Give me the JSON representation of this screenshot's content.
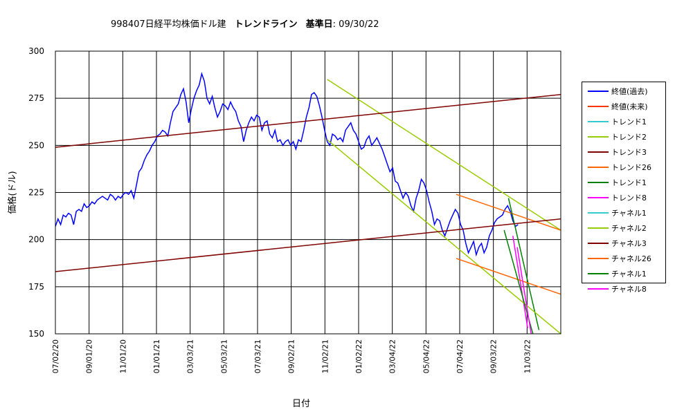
{
  "title": {
    "name": "998407日経平均株価ドル建",
    "sub": "トレンドライン",
    "base_label": "基準日",
    "date": ": 09/30/22"
  },
  "chart_data": {
    "type": "line",
    "title": "998407日経平均株価ドル建　トレンドライン　基準日: 09/30/22",
    "xlabel": "日付",
    "ylabel": "価格(ドル)",
    "ylim": [
      150,
      300
    ],
    "yticks": [
      150,
      175,
      200,
      225,
      250,
      275,
      300
    ],
    "xticks": [
      "07/02/20",
      "09/01/20",
      "11/01/20",
      "01/01/21",
      "03/03/21",
      "05/03/21",
      "07/03/21",
      "09/02/21",
      "11/02/21",
      "01/02/22",
      "03/04/22",
      "05/04/22",
      "07/04/22",
      "09/03/22",
      "11/03/22"
    ],
    "grid": true,
    "legend_position": "right",
    "series": [
      {
        "name": "終値(過去)",
        "color": "#0000ff",
        "width": 1.5,
        "points": [
          [
            0,
            207
          ],
          [
            3,
            211
          ],
          [
            6,
            208
          ],
          [
            9,
            213
          ],
          [
            12,
            212
          ],
          [
            15,
            214
          ],
          [
            18,
            213
          ],
          [
            21,
            208
          ],
          [
            24,
            215
          ],
          [
            27,
            216
          ],
          [
            30,
            215
          ],
          [
            33,
            219
          ],
          [
            36,
            217
          ],
          [
            39,
            218
          ],
          [
            42,
            220
          ],
          [
            45,
            219
          ],
          [
            48,
            221
          ],
          [
            51,
            222
          ],
          [
            54,
            223
          ],
          [
            57,
            222
          ],
          [
            60,
            221
          ],
          [
            63,
            224
          ],
          [
            66,
            223
          ],
          [
            69,
            221
          ],
          [
            72,
            223
          ],
          [
            75,
            222
          ],
          [
            78,
            224
          ],
          [
            81,
            225
          ],
          [
            84,
            224
          ],
          [
            87,
            226
          ],
          [
            90,
            222
          ],
          [
            93,
            229
          ],
          [
            96,
            236
          ],
          [
            99,
            238
          ],
          [
            102,
            242
          ],
          [
            105,
            245
          ],
          [
            108,
            247
          ],
          [
            111,
            250
          ],
          [
            114,
            252
          ],
          [
            117,
            255
          ],
          [
            120,
            256
          ],
          [
            123,
            258
          ],
          [
            126,
            257
          ],
          [
            129,
            255
          ],
          [
            132,
            262
          ],
          [
            135,
            268
          ],
          [
            138,
            270
          ],
          [
            141,
            272
          ],
          [
            144,
            277
          ],
          [
            147,
            280
          ],
          [
            150,
            273
          ],
          [
            153,
            262
          ],
          [
            156,
            269
          ],
          [
            159,
            275
          ],
          [
            162,
            279
          ],
          [
            165,
            282
          ],
          [
            168,
            288
          ],
          [
            171,
            284
          ],
          [
            174,
            275
          ],
          [
            177,
            272
          ],
          [
            180,
            276
          ],
          [
            183,
            270
          ],
          [
            186,
            265
          ],
          [
            189,
            268
          ],
          [
            192,
            272
          ],
          [
            195,
            271
          ],
          [
            198,
            269
          ],
          [
            201,
            273
          ],
          [
            204,
            270
          ],
          [
            207,
            268
          ],
          [
            210,
            263
          ],
          [
            213,
            260
          ],
          [
            216,
            252
          ],
          [
            219,
            258
          ],
          [
            222,
            262
          ],
          [
            225,
            265
          ],
          [
            228,
            263
          ],
          [
            231,
            266
          ],
          [
            234,
            265
          ],
          [
            237,
            258
          ],
          [
            240,
            262
          ],
          [
            243,
            263
          ],
          [
            246,
            256
          ],
          [
            249,
            254
          ],
          [
            252,
            258
          ],
          [
            255,
            252
          ],
          [
            258,
            253
          ],
          [
            261,
            250
          ],
          [
            264,
            252
          ],
          [
            267,
            253
          ],
          [
            270,
            250
          ],
          [
            273,
            252
          ],
          [
            276,
            248
          ],
          [
            279,
            253
          ],
          [
            282,
            252
          ],
          [
            285,
            258
          ],
          [
            288,
            265
          ],
          [
            291,
            270
          ],
          [
            294,
            277
          ],
          [
            297,
            278
          ],
          [
            300,
            276
          ],
          [
            303,
            271
          ],
          [
            306,
            265
          ],
          [
            309,
            258
          ],
          [
            312,
            252
          ],
          [
            315,
            250
          ],
          [
            318,
            256
          ],
          [
            321,
            255
          ],
          [
            324,
            253
          ],
          [
            327,
            254
          ],
          [
            330,
            252
          ],
          [
            333,
            258
          ],
          [
            336,
            260
          ],
          [
            339,
            262
          ],
          [
            342,
            258
          ],
          [
            345,
            256
          ],
          [
            348,
            252
          ],
          [
            351,
            248
          ],
          [
            354,
            249
          ],
          [
            357,
            253
          ],
          [
            360,
            255
          ],
          [
            363,
            250
          ],
          [
            366,
            252
          ],
          [
            369,
            254
          ],
          [
            372,
            251
          ],
          [
            375,
            248
          ],
          [
            378,
            244
          ],
          [
            381,
            240
          ],
          [
            384,
            236
          ],
          [
            387,
            238
          ],
          [
            390,
            231
          ],
          [
            393,
            230
          ],
          [
            396,
            226
          ],
          [
            399,
            222
          ],
          [
            402,
            225
          ],
          [
            405,
            223
          ],
          [
            408,
            218
          ],
          [
            411,
            215
          ],
          [
            414,
            222
          ],
          [
            417,
            226
          ],
          [
            420,
            232
          ],
          [
            423,
            230
          ],
          [
            426,
            226
          ],
          [
            429,
            220
          ],
          [
            432,
            215
          ],
          [
            435,
            208
          ],
          [
            438,
            211
          ],
          [
            441,
            210
          ],
          [
            444,
            205
          ],
          [
            447,
            202
          ],
          [
            450,
            206
          ],
          [
            453,
            210
          ],
          [
            456,
            213
          ],
          [
            459,
            216
          ],
          [
            462,
            214
          ],
          [
            465,
            208
          ],
          [
            468,
            205
          ],
          [
            471,
            198
          ],
          [
            474,
            193
          ],
          [
            477,
            196
          ],
          [
            480,
            199
          ],
          [
            483,
            192
          ],
          [
            486,
            196
          ],
          [
            489,
            198
          ],
          [
            492,
            193
          ],
          [
            495,
            196
          ],
          [
            498,
            202
          ],
          [
            501,
            205
          ],
          [
            504,
            209
          ],
          [
            507,
            211
          ],
          [
            510,
            212
          ],
          [
            513,
            213
          ],
          [
            516,
            216
          ],
          [
            519,
            218
          ],
          [
            522,
            215
          ],
          [
            525,
            210
          ],
          [
            528,
            207
          ],
          [
            531,
            208
          ]
        ]
      },
      {
        "name": "終値(未来)",
        "color": "#ff3300",
        "width": 1.5,
        "points": []
      },
      {
        "name": "トレンド1",
        "color": "#33cccc",
        "width": 1.5,
        "points": []
      },
      {
        "name": "トレンド2",
        "color": "#99cc00",
        "width": 1.5,
        "points": [
          [
            312,
            285
          ],
          [
            580,
            205
          ]
        ]
      },
      {
        "name": "トレンド3",
        "color": "#800000",
        "width": 1.5,
        "points": [
          [
            0,
            249
          ],
          [
            580,
            277
          ]
        ]
      },
      {
        "name": "トレンド26",
        "color": "#ff6600",
        "width": 1.5,
        "points": [
          [
            460,
            224
          ],
          [
            580,
            205
          ]
        ]
      },
      {
        "name": "トレンド1",
        "color": "#008000",
        "width": 1.5,
        "points": [
          [
            520,
            222
          ],
          [
            555,
            152
          ]
        ]
      },
      {
        "name": "トレンド8",
        "color": "#ff00ff",
        "width": 1.5,
        "points": [
          [
            525,
            202
          ],
          [
            542,
            153
          ]
        ]
      },
      {
        "name": "チャネル1",
        "color": "#33cccc",
        "width": 1.5,
        "points": []
      },
      {
        "name": "チャネル2",
        "color": "#99cc00",
        "width": 1.5,
        "points": [
          [
            312,
            253
          ],
          [
            580,
            150
          ]
        ]
      },
      {
        "name": "チャネル3",
        "color": "#800000",
        "width": 1.5,
        "points": [
          [
            0,
            183
          ],
          [
            580,
            211
          ]
        ]
      },
      {
        "name": "チャネル26",
        "color": "#ff6600",
        "width": 1.5,
        "points": [
          [
            460,
            190
          ],
          [
            580,
            171
          ]
        ]
      },
      {
        "name": "チャネル1",
        "color": "#008000",
        "width": 1.5,
        "points": [
          [
            515,
            205
          ],
          [
            548,
            150
          ]
        ]
      },
      {
        "name": "チャネル8",
        "color": "#ff00ff",
        "width": 1.5,
        "points": [
          [
            530,
            196
          ],
          [
            546,
            150
          ]
        ]
      }
    ]
  }
}
